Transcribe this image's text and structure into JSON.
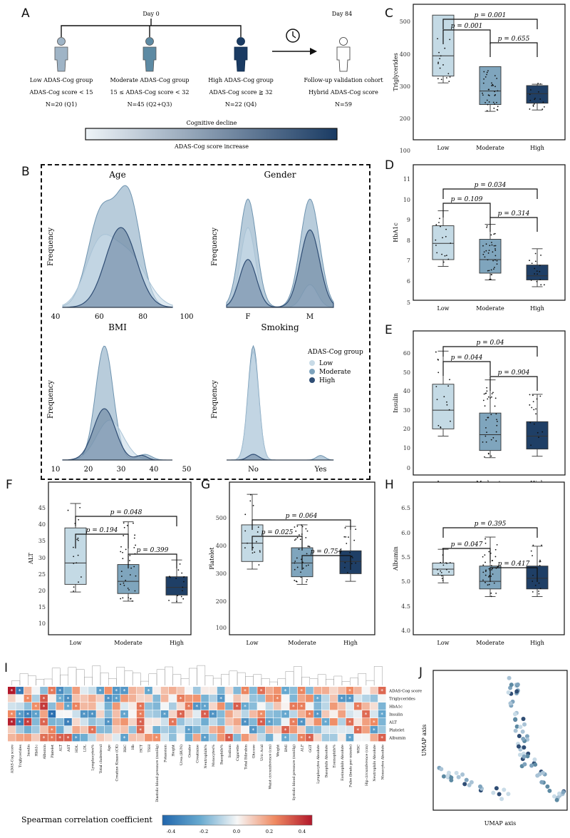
{
  "figure_labels": [
    "A",
    "B",
    "C",
    "D",
    "E",
    "F",
    "G",
    "H",
    "I",
    "J"
  ],
  "panel_a": {
    "day0": "Day 0",
    "day84": "Day 84",
    "groups": [
      {
        "name": "Low ADAS-Cog group",
        "rule": "ADAS-Cog score < 15",
        "n": "N=20 (Q1)",
        "color": "#9fb4c6"
      },
      {
        "name": "Moderate ADAS-Cog group",
        "rule": "15 ≤ ADAS-Cog score < 32",
        "n": "N=45 (Q2+Q3)",
        "color": "#5d8aa3"
      },
      {
        "name": "High ADAS-Cog group",
        "rule": "ADAS-Cog score ≧ 32",
        "n": "N=22 (Q4)",
        "color": "#1a3b63"
      },
      {
        "name": "Follow-up validation cohort",
        "rule": "Hybrid ADAS-Cog score",
        "n": "N=59",
        "color": "#ffffff"
      }
    ],
    "gradient_top": "Cognitive decline",
    "gradient_bottom": "ADAS-Cog score increase"
  },
  "panel_b": {
    "freq_label": "Frequency",
    "legend_title": "ADAS-Cog group",
    "legend_items": [
      "Low",
      "Moderate",
      "High"
    ],
    "colors": {
      "low": "#c8dbe7",
      "moderate": "#7ea3bd",
      "high": "#2f4d74"
    },
    "plots": [
      {
        "title": "Age",
        "ticks": [
          "40",
          "60",
          "80",
          "100"
        ]
      },
      {
        "title": "Gender",
        "ticks": [
          "F",
          "M"
        ]
      },
      {
        "title": "BMI",
        "ticks": [
          "10",
          "20",
          "30",
          "40",
          "50"
        ]
      },
      {
        "title": "Smoking",
        "ticks": [
          "No",
          "Yes"
        ]
      }
    ]
  },
  "box_panels": [
    {
      "id": "C",
      "ylabel": "Triglycerides",
      "yticks": [
        "500",
        "400",
        "300",
        "200",
        "100"
      ],
      "categories": [
        "Low",
        "Moderate",
        "High"
      ],
      "p": {
        "low_mod": "p = 0.001",
        "mod_high": "p = 0.655",
        "low_high": "p = 0.001"
      }
    },
    {
      "id": "D",
      "ylabel": "HbA1c",
      "yticks": [
        "11",
        "10",
        "9",
        "8",
        "7",
        "6",
        "5"
      ],
      "categories": [
        "Low",
        "Moderate",
        "High"
      ],
      "p": {
        "low_mod": "p = 0.109",
        "mod_high": "p = 0.314",
        "low_high": "p = 0.034"
      }
    },
    {
      "id": "E",
      "ylabel": "Insulin",
      "yticks": [
        "60",
        "50",
        "40",
        "30",
        "20",
        "10",
        "0"
      ],
      "categories": [
        "Low",
        "Moderate",
        "High"
      ],
      "p": {
        "low_mod": "p = 0.044",
        "mod_high": "p = 0.904",
        "low_high": "p = 0.04"
      }
    },
    {
      "id": "F",
      "ylabel": "ALT",
      "yticks": [
        "45",
        "40",
        "35",
        "30",
        "25",
        "20",
        "15",
        "10"
      ],
      "categories": [
        "Low",
        "Moderate",
        "High"
      ],
      "p": {
        "low_mod": "p = 0.194",
        "mod_high": "p = 0.399",
        "low_high": "p = 0.048"
      }
    },
    {
      "id": "G",
      "ylabel": "Platelet",
      "yticks": [
        "500",
        "400",
        "300",
        "200",
        "100"
      ],
      "categories": [
        "Low",
        "Moderate",
        "High"
      ],
      "p": {
        "low_mod": "p = 0.025",
        "mod_high": "p = 0.754",
        "low_high": "p = 0.064"
      }
    },
    {
      "id": "H",
      "ylabel": "Albumin",
      "yticks": [
        "6.5",
        "6.0",
        "5.5",
        "5.0",
        "4.5",
        "4.0"
      ],
      "categories": [
        "Low",
        "Moderate",
        "High"
      ],
      "p": {
        "low_mod": "p = 0.047",
        "mod_high": "p = 0.417",
        "low_high": "p = 0.395"
      }
    }
  ],
  "panel_i": {
    "rows": [
      "ADAS-Cog score",
      "Triglycerides",
      "HbA1c",
      "Insulin",
      "ALT",
      "Platelet",
      "Albumin"
    ],
    "columns": [
      "ADAS-Cog score",
      "Triglycerides",
      "Insulin",
      "HbA1c",
      "Albumin",
      "Platelet",
      "ALT",
      "AST",
      "HDL",
      "LDL",
      "Lymphocytes%",
      "Total cholesterol",
      "Age",
      "Creatine Kinase (CK)",
      "RBC",
      "Hb",
      "HCT",
      "TSH",
      "Diastolic blood pressure (mmHg)",
      "Potassium",
      "Height",
      "Urea (BUN)",
      "Gender",
      "Creatinine",
      "Neutrophils%",
      "Monocytes%",
      "Basophils%",
      "Sodium",
      "Cigarette",
      "Total Bilirubin",
      "Glucose",
      "Uric Acid",
      "Waist circumference (cm)",
      "Weight",
      "BMI",
      "Systolic blood pressure (mmHg)",
      "ALP",
      "GGT",
      "Lymphocytes Absolute",
      "Basophils Absolute",
      "Eosinophils%",
      "Eosinophils Absolute",
      "Pulse (beats per minute)",
      "WBC",
      "Hip circumference (cm)",
      "Neutrophils Absolute",
      "Monocytes Absolute"
    ],
    "colorbar_title": "Spearman correlation coefficient",
    "colorbar_ticks": [
      "-0.4",
      "-0.2",
      "0.0",
      "0.2",
      "0.4"
    ]
  },
  "panel_j": {
    "xlabel": "UMAP axis",
    "ylabel": "UMAP axis"
  }
}
